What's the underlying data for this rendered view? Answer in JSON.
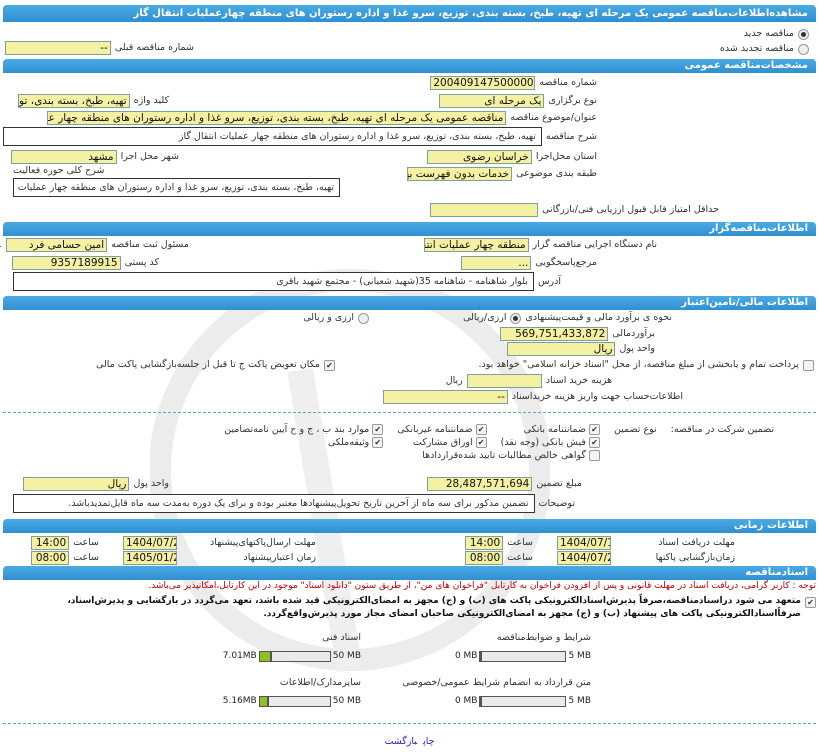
{
  "header": {
    "title": "مشاهده‌اطلاعات‌مناقصه عمومی یک مرحله ای تهیه، طبخ، بسته بندی، توزیع، سرو غذا و اداره رستوران های منطقه چهارعملیات انتقال گاز"
  },
  "tender_type": {
    "new_label": "مناقصه جدید",
    "new_selected": true,
    "renewed_label": "مناقصه تجدید شده",
    "renewed_selected": false,
    "prev_number_label": "شماره مناقصه قبلی",
    "prev_number_value": "--"
  },
  "general": {
    "section_title": "مشخصات‌مناقصه عمومی",
    "number_label": "شماره مناقصه",
    "number_value": "2004091475000009",
    "type_label": "نوع برگزاری",
    "type_value": "یک مرحله ای",
    "keyword_label": "کلید واژه",
    "keyword_value": "تهیه، طبخ، بسته بندی، توزیع",
    "subject_label": "عنوان/موضوع مناقصه",
    "subject_value": "مناقصه عمومی یک مرحله ای تهیه، طبخ، بسته بندی، توزیع، سرو غذا و اداره رستوران های منطقه چهار عملیات انتقال گاز",
    "description_label": "شرح مناقصه",
    "description_value": "تهیه، طبخ، بسته بندی، توزیع، سرو غذا و اداره رستوران های منطقه چهار عملیات انتقال گاز",
    "province_label": "استان محل‌اجرا",
    "province_value": "خراسان رضوی",
    "city_label": "شهر محل اجرا",
    "city_value": "مشهد",
    "category_label": "طبقه بندی موضوعی",
    "category_value": "خدمات بدون فهرست بها",
    "activity_label": "شرح کلی حوزه فعالیت",
    "activity_value": "تهیه، طبخ، بسته بندی، توزیع، سرو غذا و اداره رستوران های منطقه چهار عملیات انتقال گاز",
    "min_score_label": "حداقل امتیاز قابل قبول ارزیابی فنی/بازرگانی",
    "min_score_value": ""
  },
  "organizer": {
    "section_title": "اطلاعات‌مناقصه‌گزار",
    "org_label": "نام دستگاه اجرایی مناقصه گزار",
    "org_value": "منطقه چهار عملیات انتقال",
    "registrar_label": "مسئول ثبت مناقصه",
    "registrar_value": "امین حسامی فرد",
    "more": "...",
    "reference_label": "مرجع‌پاسخگویی",
    "reference_value": "...",
    "postal_label": "کد پستی",
    "postal_value": "9357189915",
    "address_label": "آدرس",
    "address_value": "بلوار شاهنامه - شاهنامه 35(شهید شعبانی) - مجتمع شهید باقری"
  },
  "financial": {
    "section_title": "اطلاعات مالی/تامین‌اعتبار",
    "estimate_method_label": "نحوه ی برآورد مالی و قیمت‌پیشنهادی",
    "opt_rial": "ارزی/ریالی",
    "opt_rial_selected": true,
    "opt_both": "ارزی و ریالی",
    "opt_both_selected": false,
    "estimate_label": "برآوردمالی",
    "estimate_value": "569,751,433,872",
    "currency_label": "واحد پول",
    "currency_value": "ریال",
    "treasury_label": "پرداخت تمام و یابخشی از مبلغ مناقصه، از محل \"اسناد خزانه اسلامی\" خواهد بود.",
    "treasury_checked": false,
    "swap_label": "مکان تعویض پاکت ج تا قبل از جلسه‌بازگشایی پاکت مالی",
    "swap_checked": true,
    "doc_fee_label": "هزینه خرید اسناد",
    "doc_fee_value": "",
    "doc_fee_unit": "ریال",
    "account_label": "اطلاعات‌حساب جهت واریز هزینه خریداسناد",
    "account_value": "--"
  },
  "guarantee": {
    "label": "تضمین شرکت در مناقصه:",
    "type_label": "نوع تضمین",
    "options": [
      {
        "label": "ضمانتنامه بانکی",
        "checked": true
      },
      {
        "label": "ضمانتنامه غیربانکی",
        "checked": true
      },
      {
        "label": "موارد بند ب ، ج و ح آیین نامه‌تضامین",
        "checked": true
      },
      {
        "label": "فیش بانکی (وجه نقد)",
        "checked": true
      },
      {
        "label": "اوراق مشارکت",
        "checked": true
      },
      {
        "label": "وثیقه‌ملکی",
        "checked": true
      },
      {
        "label": "گواهی خالص مطالبات تایید شده‌قراردادها",
        "checked": false
      }
    ],
    "amount_label": "مبلغ تضمین",
    "amount_value": "28,487,571,694",
    "currency_label": "واحد پول",
    "currency_value": "ریال",
    "notes_label": "توضیحات",
    "notes_value": "تضمین مذکور برای سه ماه از آخرین تاریخ تحویل‌پیشنهادها معتبر بوده و برای یک دوره به‌مدت سه ماه قابل‌تمدیدباشد."
  },
  "timing": {
    "section_title": "اطلاعات زمانی",
    "doc_deadline_label": "مهلت دریافت اسناد",
    "doc_deadline_date": "1404/07/16",
    "doc_deadline_time": "14:00",
    "submit_deadline_label": "مهلت ارسال‌پاکتهای‌پیشنهاد",
    "submit_deadline_date": "1404/07/26",
    "submit_deadline_time": "14:00",
    "opening_label": "زمان‌بازگشایی پاکتها",
    "opening_date": "1404/07/27",
    "opening_time": "08:00",
    "validity_label": "زمان اعتبارپیشنهاد",
    "validity_date": "1405/01/27",
    "validity_time": "08:00",
    "time_label": "ساعت"
  },
  "documents": {
    "section_title": "اسنادمناقصه",
    "notice": "توجه : کاربر گرامی، دریافت اسناد در مهلت قانونی و پس از افزودن فراخوان به کارتابل \"فراخوان های من\"، از طریق ستون \"دانلود اسناد\" موجود در این کارتابل،امکانپذیر می‌باشد.",
    "commitment_line1": "متعهد می شود دراسنادمناقصه،صرفاً پذیرش‌اسنادالکترونیکی پاکت های (ب) و (ج) مجهز به امضای‌الکترونیکی قید شده باشد، تعهد می‌گردد در بازگشایی و پذیرش‌اسناد، صرفاًاسنادالکترونیکی پاکت های",
    "commitment_line2": "پیشنهاد (ب) و (ج) مجهز به امضای‌الکترونیکی صاحبان امضای مجاز مورد پذیرش‌واقع‌گردد.",
    "commitment_checked": true,
    "files": [
      {
        "label": "شرایط و ضوابط‌مناقصه",
        "used": "0 MB",
        "max": "5 MB",
        "fraction": 0
      },
      {
        "label": "اسناد فنی",
        "used": "7.01MB",
        "max": "50 MB",
        "fraction": 0.14
      },
      {
        "label": "متن قرارداد به انضمام شرایط عمومی/خصوصی",
        "used": "0 MB",
        "max": "5 MB",
        "fraction": 0
      },
      {
        "label": "سایرمدارک/اطلاعات",
        "used": "5.16MB",
        "max": "50 MB",
        "fraction": 0.103
      }
    ]
  },
  "footer": {
    "print_link": "چاپ",
    "back_link": "بازگشت"
  },
  "colors": {
    "section_bar": "#3a9ddc",
    "input_bg": "#f5f1a2",
    "progress_fill": "#8fc126",
    "notice": "#c00000",
    "link": "#2020c0"
  }
}
